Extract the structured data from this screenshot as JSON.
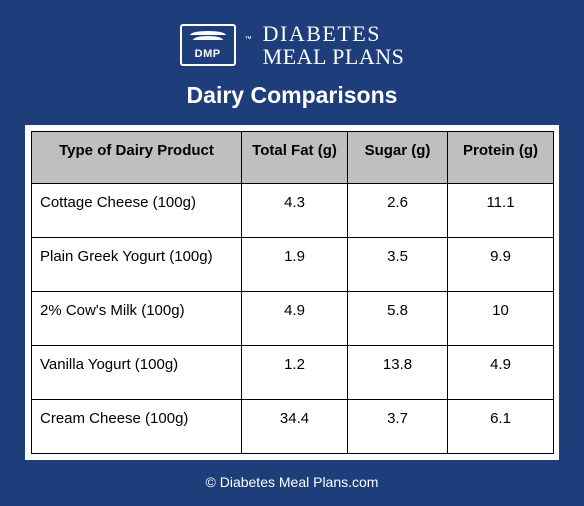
{
  "logo": {
    "mark_label": "DMP",
    "tm": "™",
    "line1": "DIABETES",
    "line2": "MEAL PLANS"
  },
  "title": "Dairy Comparisons",
  "table": {
    "columns": [
      "Type of Dairy Product",
      "Total Fat (g)",
      "Sugar (g)",
      "Protein (g)"
    ],
    "rows": [
      [
        "Cottage Cheese (100g)",
        "4.3",
        "2.6",
        "11.1"
      ],
      [
        "Plain Greek Yogurt (100g)",
        "1.9",
        "3.5",
        "9.9"
      ],
      [
        " 2% Cow's Milk (100g)",
        "4.9",
        "5.8",
        "10"
      ],
      [
        "Vanilla Yogurt (100g)",
        "1.2",
        "13.8",
        "4.9"
      ],
      [
        "Cream Cheese (100g)",
        "34.4",
        "3.7",
        "6.1"
      ]
    ],
    "header_bg": "#bfbfbf",
    "cell_bg": "#ffffff",
    "border_color": "#000000",
    "font_size": 15
  },
  "footer": "© Diabetes Meal Plans.com",
  "colors": {
    "page_bg": "#1e3d7b",
    "text_on_dark": "#ffffff"
  }
}
